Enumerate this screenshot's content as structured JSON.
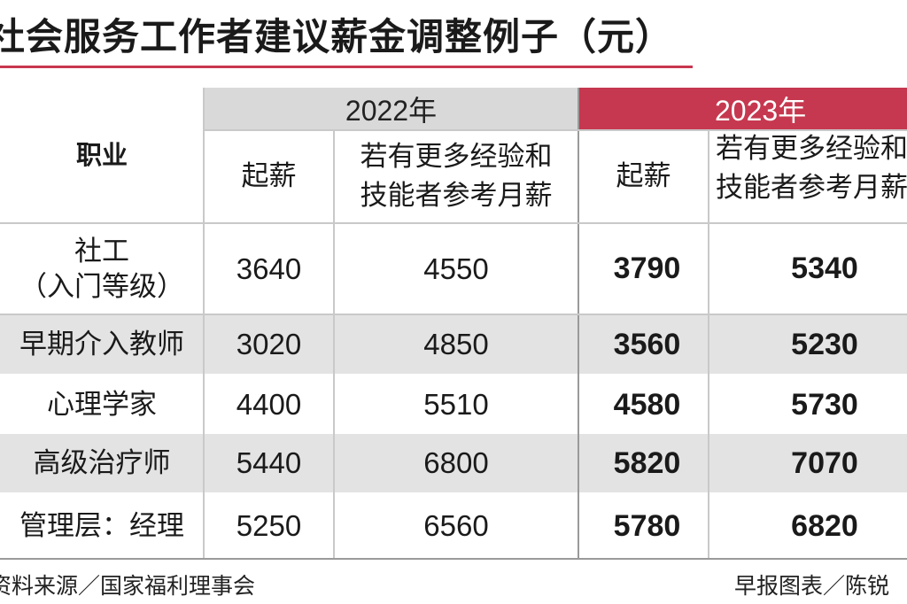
{
  "title": "社会服务工作者建议薪金调整例子（元）",
  "years": {
    "y2022": "2022年",
    "y2023": "2023年"
  },
  "headers": {
    "job": "职业",
    "start_2022": "起薪",
    "exp_2022_line1": "若有更多经验和",
    "exp_2022_line2": "技能者参考月薪",
    "start_2023": "起薪",
    "exp_2023_line1": "若有更多经验和",
    "exp_2023_line2": "技能者参考月薪"
  },
  "rows": [
    {
      "job_line1": "社工",
      "job_line2": "（入门等级）",
      "start_2022": "3640",
      "exp_2022": "4550",
      "start_2023": "3790",
      "exp_2023": "5340"
    },
    {
      "job_line1": "早期介入教师",
      "job_line2": "",
      "start_2022": "3020",
      "exp_2022": "4850",
      "start_2023": "3560",
      "exp_2023": "5230"
    },
    {
      "job_line1": "心理学家",
      "job_line2": "",
      "start_2022": "4400",
      "exp_2022": "5510",
      "start_2023": "4580",
      "exp_2023": "5730"
    },
    {
      "job_line1": "高级治疗师",
      "job_line2": "",
      "start_2022": "5440",
      "exp_2022": "6800",
      "start_2023": "5820",
      "exp_2023": "7070"
    },
    {
      "job_line1": "管理层：经理",
      "job_line2": "",
      "start_2022": "5250",
      "exp_2022": "6560",
      "start_2023": "5780",
      "exp_2023": "6820"
    }
  ],
  "footer": {
    "source": "资料来源／国家福利理事会",
    "credit": "早报图表／陈锐"
  },
  "colors": {
    "accent": "#c6384f",
    "header_gray": "#d9d9d9",
    "row_shade": "#e3e3e3"
  }
}
